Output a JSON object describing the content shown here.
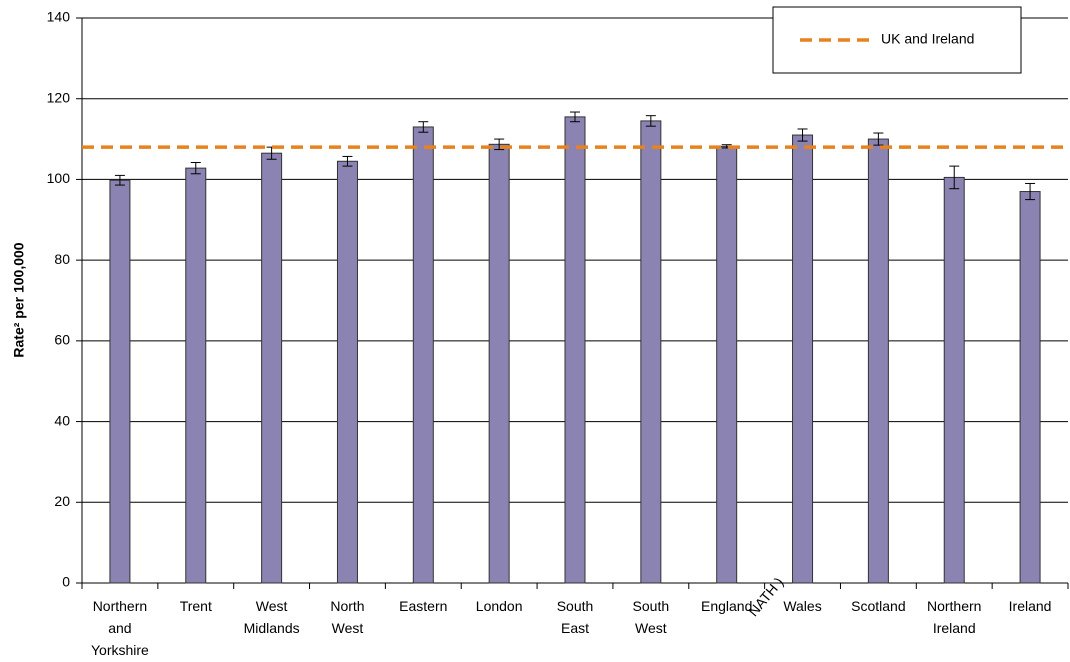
{
  "chart_data": {
    "type": "bar",
    "y_label": "Rate² per 100,000",
    "categories": [
      "Northern and Yorkshire",
      "Trent",
      "West Midlands",
      "North West",
      "Eastern",
      "London",
      "South East",
      "South West",
      "England",
      "Wales",
      "Scotland",
      "Northern Ireland",
      "Ireland"
    ],
    "values": [
      99.8,
      102.8,
      106.5,
      104.5,
      113,
      108.7,
      115.5,
      114.5,
      108.2,
      111,
      110,
      100.5,
      97
    ],
    "errors": [
      1.2,
      1.4,
      1.5,
      1.2,
      1.3,
      1.3,
      1.2,
      1.3,
      0.4,
      1.5,
      1.5,
      2.8,
      2
    ],
    "color": "#8b84b2",
    "reference_line": {
      "name": "UK and Ireland",
      "value": 108,
      "color": "#e8821e"
    },
    "ylim": [
      0,
      140
    ],
    "yticks": [
      0,
      20,
      40,
      60,
      80,
      100,
      120,
      140
    ],
    "grid": true,
    "annotation": {
      "text": "NATH )",
      "color": "#ff0000"
    }
  }
}
